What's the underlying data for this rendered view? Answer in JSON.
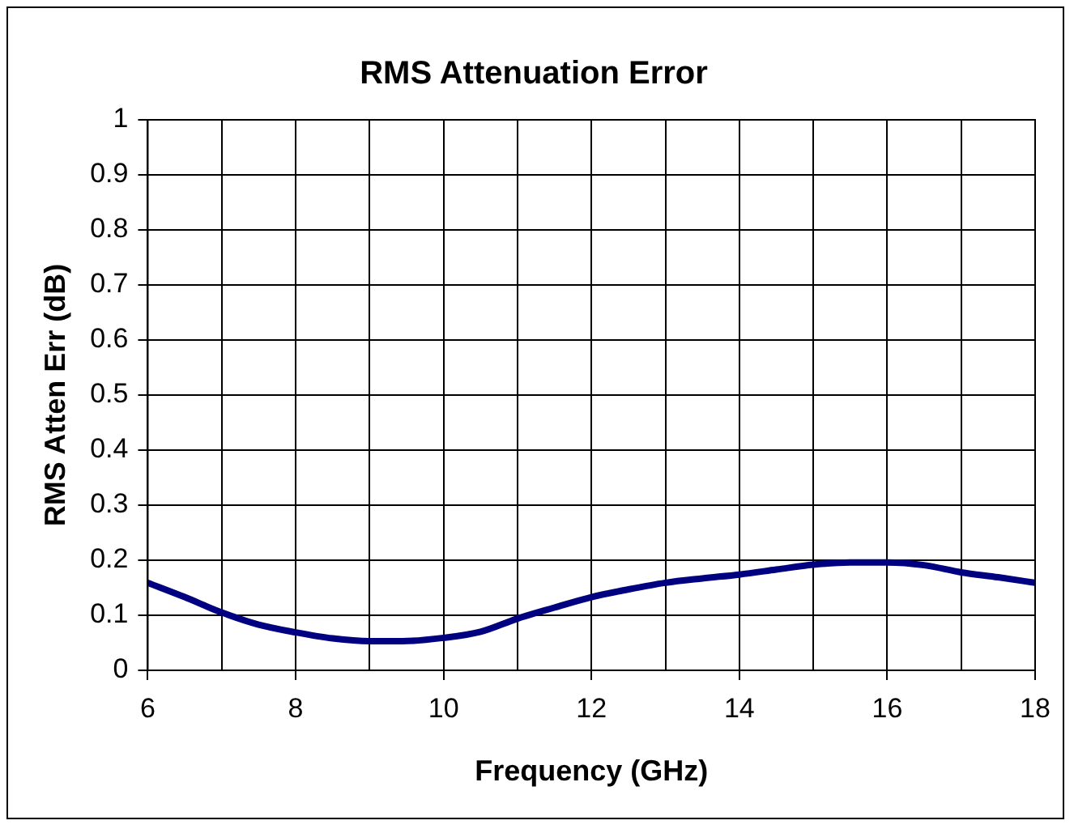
{
  "chart_data": {
    "type": "line",
    "title": "RMS Attenuation Error",
    "xlabel": "Frequency (GHz)",
    "ylabel": "RMS Atten Err (dB)",
    "x": [
      6,
      6.5,
      7,
      7.5,
      8,
      8.5,
      9,
      9.44,
      10,
      10.5,
      11,
      11.5,
      12,
      12.5,
      13,
      13.5,
      14,
      14.5,
      15,
      15.5,
      16,
      16.5,
      17,
      17.5,
      18
    ],
    "series": [
      {
        "color": "#000080",
        "values": [
          0.159,
          0.133,
          0.105,
          0.083,
          0.069,
          0.058,
          0.053,
          0.053,
          0.059,
          0.07,
          0.094,
          0.114,
          0.133,
          0.147,
          0.159,
          0.167,
          0.174,
          0.183,
          0.192,
          0.196,
          0.196,
          0.191,
          0.178,
          0.169,
          0.159
        ]
      }
    ],
    "xlim": [
      6,
      18
    ],
    "xticks": [
      6,
      {
        "value": 7,
        "label": null
      },
      8,
      {
        "value": 9,
        "label": null
      },
      10,
      {
        "value": 11,
        "label": null
      },
      12,
      {
        "value": 13,
        "label": null
      },
      14,
      {
        "value": 15,
        "label": null
      },
      16,
      {
        "value": 17,
        "label": null
      },
      18
    ],
    "ylim": [
      0,
      1
    ],
    "yticks": [
      0,
      0.1,
      0.2,
      0.3,
      0.4,
      0.5,
      0.6,
      0.7,
      0.8,
      0.9,
      1
    ],
    "grid": true,
    "legend": false,
    "marker": "none",
    "line_style": "solid"
  }
}
